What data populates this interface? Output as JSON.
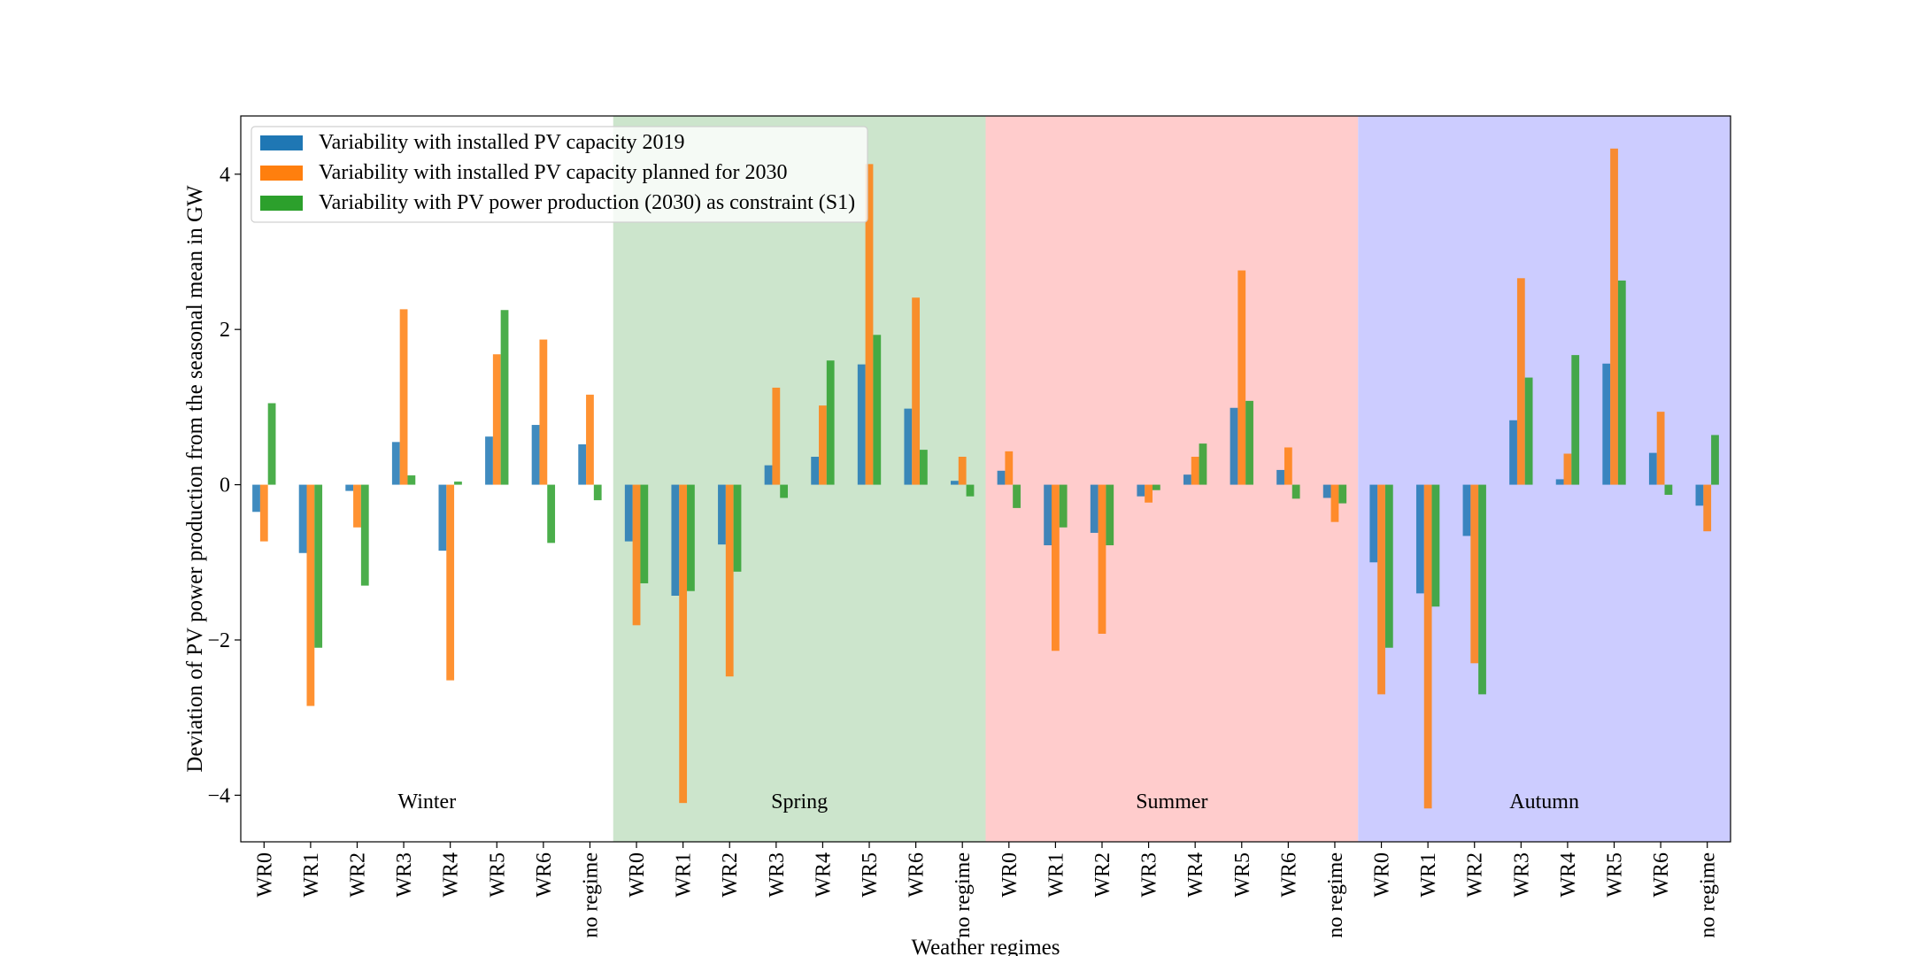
{
  "chart_data": {
    "type": "bar",
    "xlabel": "Weather regimes",
    "ylabel": "Deviation of PV power production from the seasonal mean in GW",
    "ylim": [
      -4.6,
      4.75
    ],
    "yticks": [
      -4,
      -2,
      0,
      2,
      4
    ],
    "ytick_labels": [
      "−4",
      "−2",
      "0",
      "2",
      "4"
    ],
    "categories": [
      "WR0",
      "WR1",
      "WR2",
      "WR3",
      "WR4",
      "WR5",
      "WR6",
      "no regime",
      "WR0",
      "WR1",
      "WR2",
      "WR3",
      "WR4",
      "WR5",
      "WR6",
      "no regime",
      "WR0",
      "WR1",
      "WR2",
      "WR3",
      "WR4",
      "WR5",
      "WR6",
      "no regime",
      "WR0",
      "WR1",
      "WR2",
      "WR3",
      "WR4",
      "WR5",
      "WR6",
      "no regime"
    ],
    "seasons": [
      {
        "name": "Winter",
        "start": 0,
        "end": 8,
        "color": "#ffffff"
      },
      {
        "name": "Spring",
        "start": 8,
        "end": 16,
        "color": "#cce5cc"
      },
      {
        "name": "Summer",
        "start": 16,
        "end": 24,
        "color": "#ffcccc"
      },
      {
        "name": "Autumn",
        "start": 24,
        "end": 32,
        "color": "#ccccff"
      }
    ],
    "legend_position": "top-left",
    "series": [
      {
        "name": "Variability with installed PV capacity 2019",
        "color": "#1f77b4",
        "values": [
          -0.35,
          -0.88,
          -0.08,
          0.55,
          -0.85,
          0.62,
          0.77,
          0.52,
          -0.73,
          -1.43,
          -0.77,
          0.25,
          0.36,
          1.55,
          0.98,
          0.05,
          0.18,
          -0.78,
          -0.62,
          -0.15,
          0.13,
          0.99,
          0.19,
          -0.17,
          -1.0,
          -1.4,
          -0.66,
          0.83,
          0.07,
          1.56,
          0.41,
          -0.27
        ]
      },
      {
        "name": "Variability with installed PV capacity planned for 2030",
        "color": "#ff7f0e",
        "values": [
          -0.73,
          -2.85,
          -0.55,
          2.26,
          -2.52,
          1.68,
          1.87,
          1.16,
          -1.81,
          -4.1,
          -2.47,
          1.25,
          1.02,
          4.13,
          2.41,
          0.36,
          0.43,
          -2.14,
          -1.92,
          -0.23,
          0.36,
          2.76,
          0.48,
          -0.48,
          -2.7,
          -4.17,
          -2.3,
          2.66,
          0.4,
          4.33,
          0.94,
          -0.6
        ]
      },
      {
        "name": "Variability with PV power production (2030) as constraint (S1)",
        "color": "#2ca02c",
        "values": [
          1.05,
          -2.1,
          -1.3,
          0.12,
          0.04,
          2.25,
          -0.75,
          -0.2,
          -1.27,
          -1.37,
          -1.12,
          -0.17,
          1.6,
          1.93,
          0.45,
          -0.15,
          -0.3,
          -0.55,
          -0.78,
          -0.07,
          0.53,
          1.08,
          -0.18,
          -0.24,
          -2.1,
          -1.57,
          -2.7,
          1.38,
          1.67,
          2.63,
          -0.13,
          0.64
        ]
      }
    ]
  }
}
